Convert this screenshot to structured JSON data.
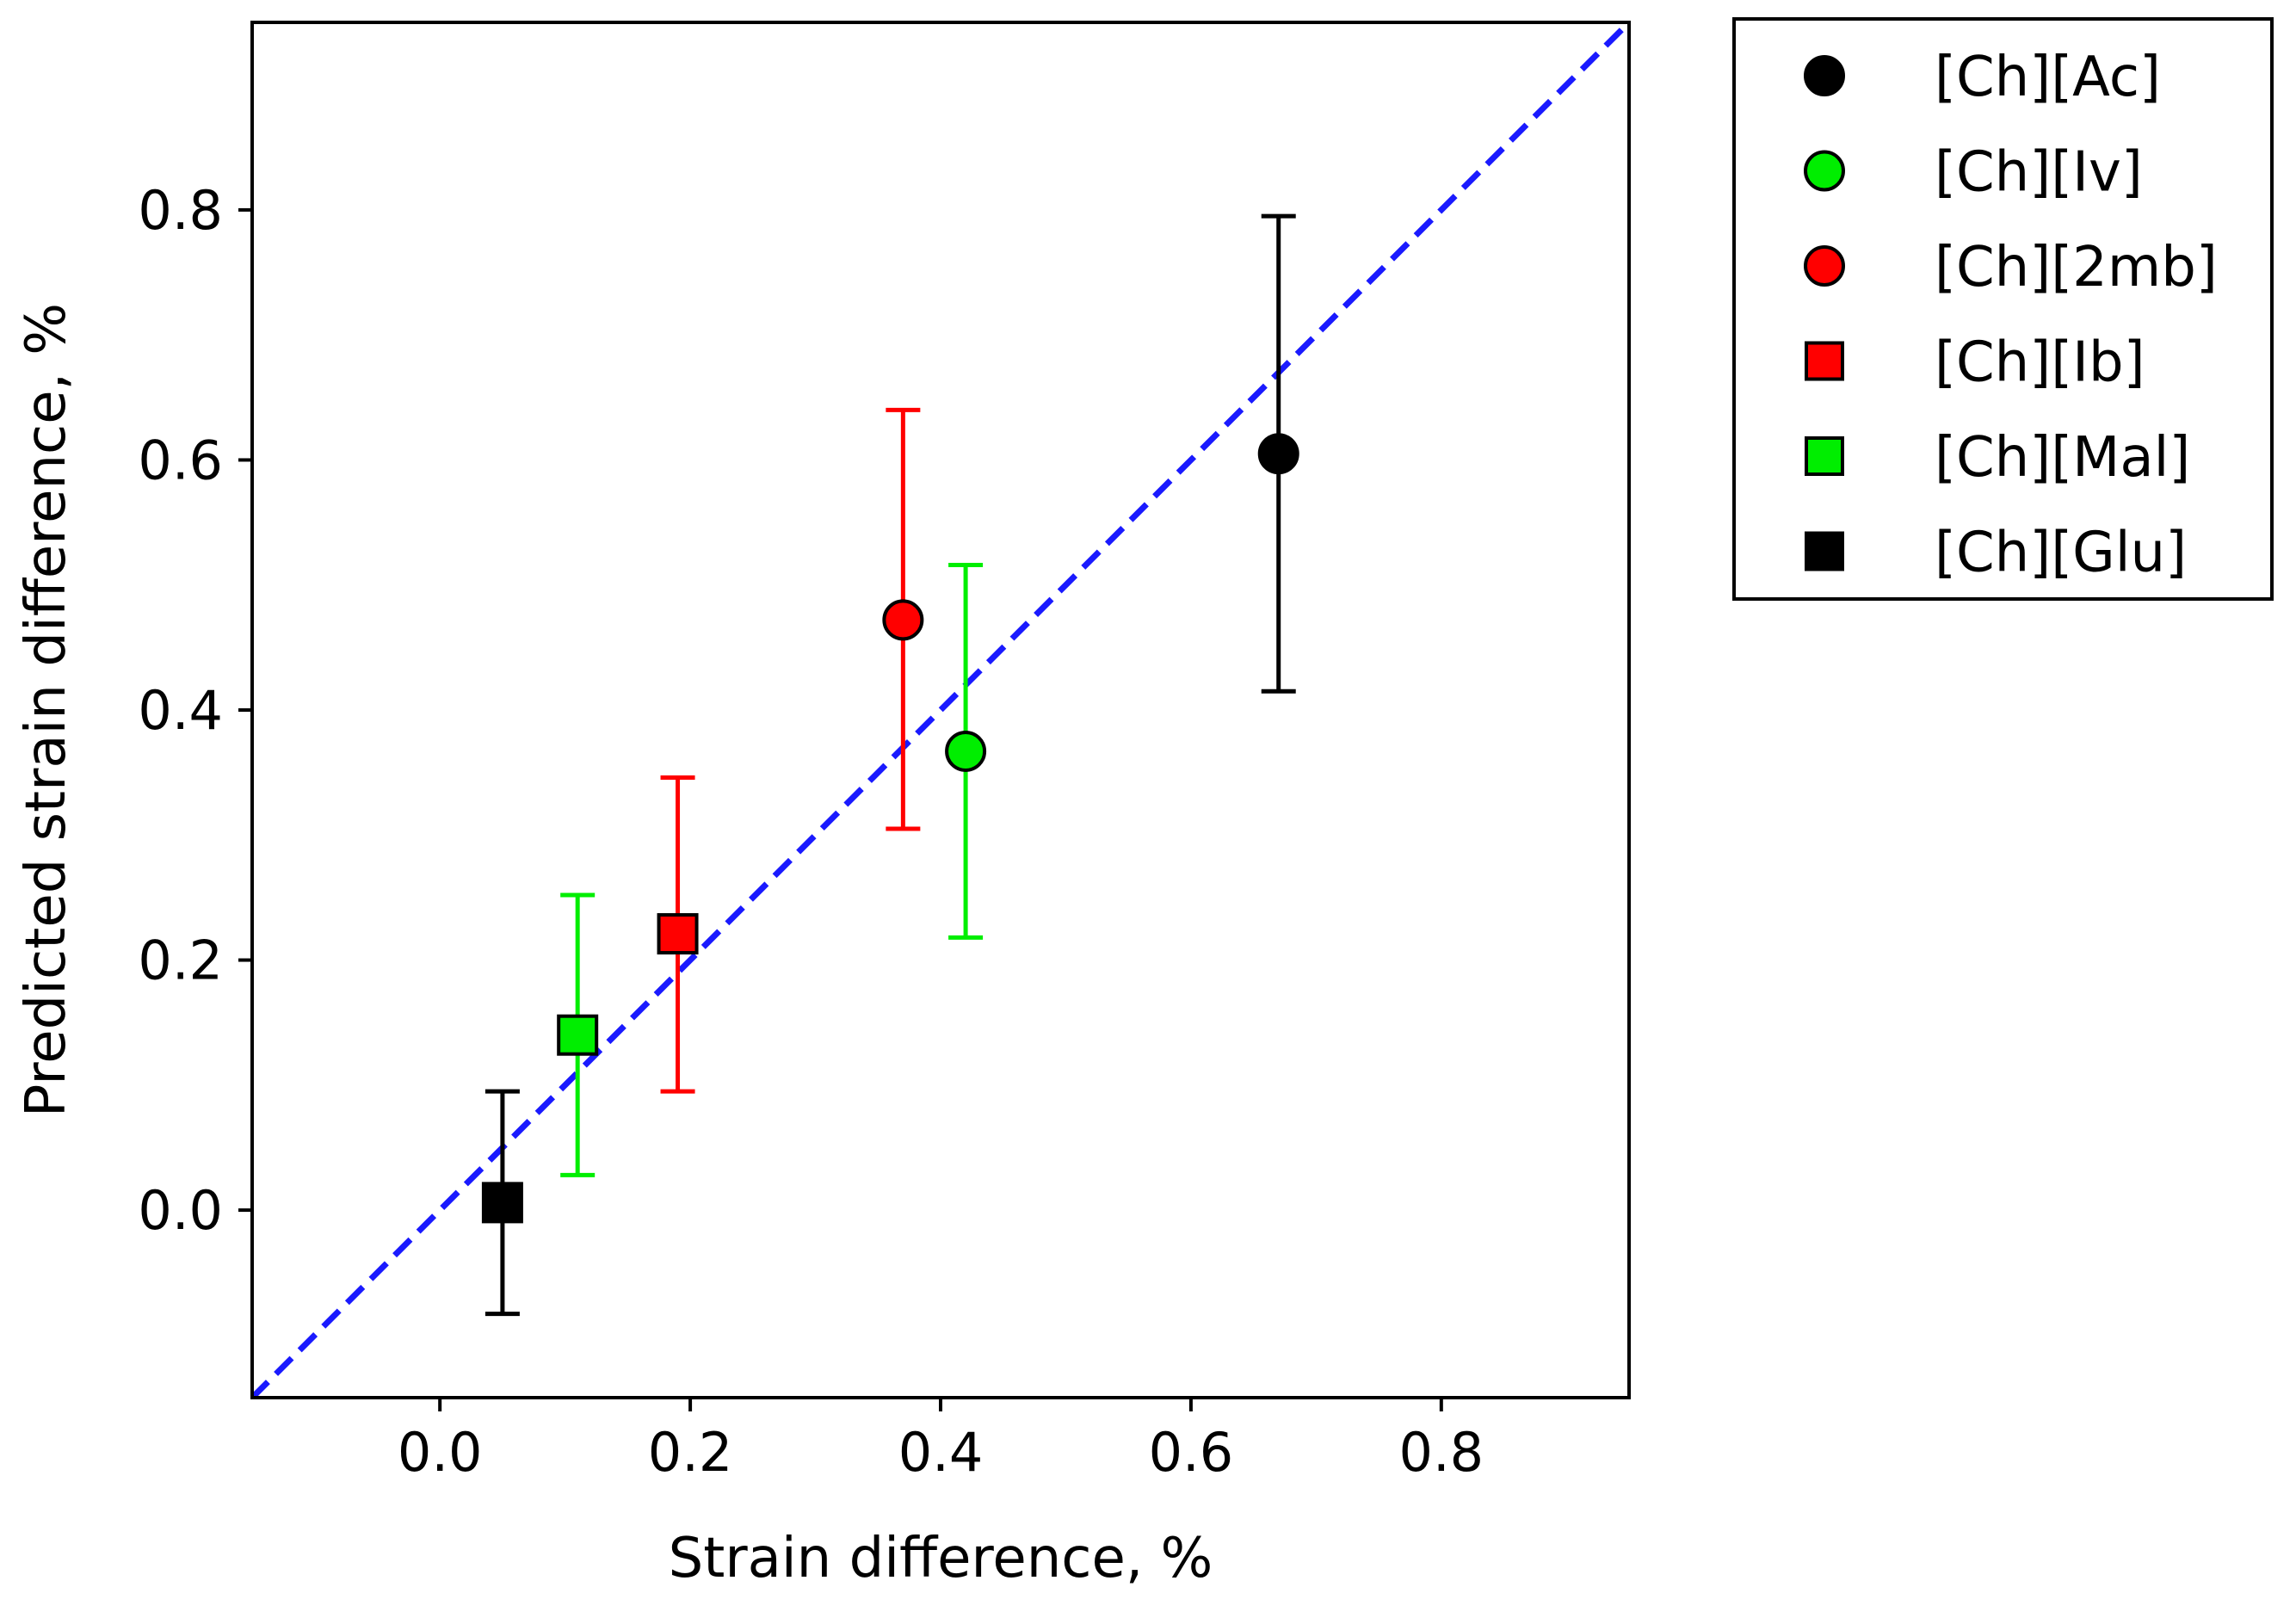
{
  "chart_data": {
    "type": "scatter",
    "title": "",
    "xlabel": "Strain difference, %",
    "ylabel": "Predicted strain difference, %",
    "xlim": [
      -0.15,
      0.95
    ],
    "ylim": [
      -0.15,
      0.95
    ],
    "xticks": [
      0.0,
      0.2,
      0.4,
      0.6,
      0.8
    ],
    "yticks": [
      0.0,
      0.2,
      0.4,
      0.6,
      0.8
    ],
    "xtick_labels": [
      "0.0",
      "0.2",
      "0.4",
      "0.6",
      "0.8"
    ],
    "ytick_labels": [
      "0.0",
      "0.2",
      "0.4",
      "0.6",
      "0.8"
    ],
    "grid": false,
    "legend_position": "outside-top-right",
    "reference_line": {
      "type": "identity",
      "style": "dashed",
      "color": "#1a1aff",
      "from": [
        -0.15,
        -0.15
      ],
      "to": [
        0.95,
        0.95
      ]
    },
    "series": [
      {
        "name": "[Ch][Ac]",
        "marker": "circle",
        "color": "#000000",
        "x": 0.67,
        "y": 0.605,
        "yerr_low": 0.415,
        "yerr_high": 0.795
      },
      {
        "name": "[Ch][Iv]",
        "marker": "circle",
        "color": "#00ee00",
        "x": 0.42,
        "y": 0.367,
        "yerr_low": 0.218,
        "yerr_high": 0.516
      },
      {
        "name": "[Ch][2mb]",
        "marker": "circle",
        "color": "#ff0000",
        "x": 0.37,
        "y": 0.472,
        "yerr_low": 0.305,
        "yerr_high": 0.64
      },
      {
        "name": "[Ch][Ib]",
        "marker": "square",
        "color": "#ff0000",
        "x": 0.19,
        "y": 0.221,
        "yerr_low": 0.095,
        "yerr_high": 0.346
      },
      {
        "name": "[Ch][Mal]",
        "marker": "square",
        "color": "#00ee00",
        "x": 0.11,
        "y": 0.14,
        "yerr_low": 0.028,
        "yerr_high": 0.252
      },
      {
        "name": "[Ch][Glu]",
        "marker": "square",
        "color": "#000000",
        "x": 0.05,
        "y": 0.006,
        "yerr_low": -0.083,
        "yerr_high": 0.095
      }
    ]
  }
}
